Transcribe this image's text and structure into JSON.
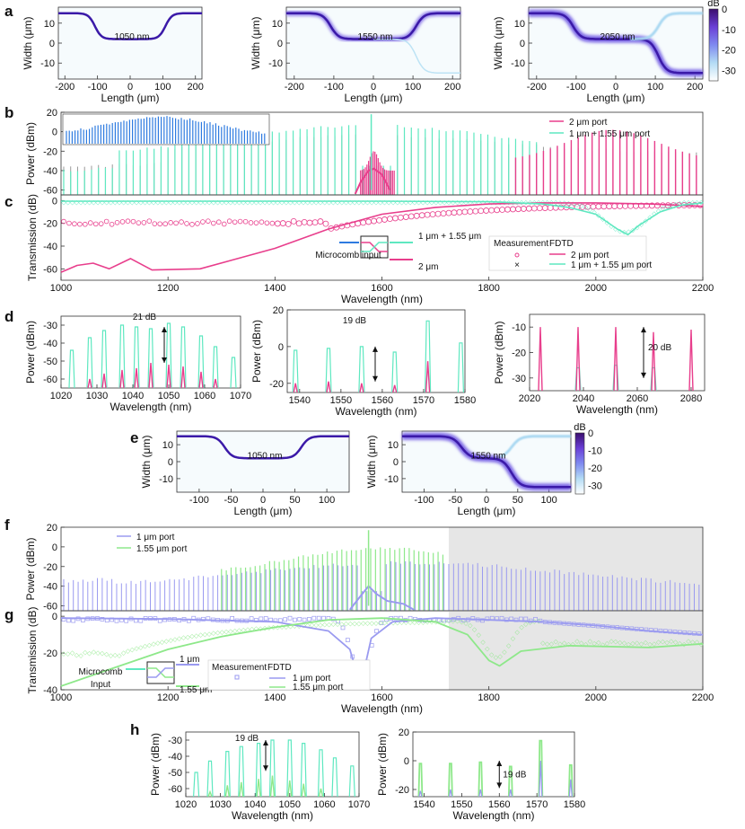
{
  "colors": {
    "pink": "#e83e8c",
    "teal": "#5ee8c0",
    "blue": "#2e7be0",
    "purple": "#5a3fd0",
    "lavender": "#9a9af0",
    "lightgreen": "#8ee88a",
    "grey": "#e6e6e6"
  },
  "panel_labels": [
    "a",
    "b",
    "c",
    "d",
    "e",
    "f",
    "g",
    "h"
  ],
  "units": {
    "dB": "dB"
  },
  "axis_labels": {
    "width": "Width (μm)",
    "length": "Length (μm)",
    "power": "Power (dBm)",
    "transmission": "Transmission (dB)",
    "wavelength": "Wavelength (nm)"
  },
  "chart_data": [
    {
      "id": "a1",
      "type": "heatmap",
      "title": "1050 nm",
      "xlabel": "Length (μm)",
      "ylabel": "Width (μm)",
      "xlim": [
        -220,
        220
      ],
      "ylim": [
        -18,
        18
      ],
      "xticks": [
        -200,
        -100,
        0,
        100,
        200
      ],
      "yticks": [
        10,
        0,
        -10
      ],
      "path": "upper"
    },
    {
      "id": "a2",
      "type": "heatmap",
      "title": "1550 nm",
      "xlabel": "Length (μm)",
      "ylabel": "Width (μm)",
      "xlim": [
        -220,
        220
      ],
      "ylim": [
        -18,
        18
      ],
      "xticks": [
        -200,
        -100,
        0,
        100,
        200
      ],
      "yticks": [
        10,
        0,
        -10
      ],
      "path": "upper+faint lower"
    },
    {
      "id": "a3",
      "type": "heatmap",
      "title": "2050 nm",
      "xlabel": "Length (μm)",
      "ylabel": "Width (μm)",
      "xlim": [
        -220,
        220
      ],
      "ylim": [
        -18,
        18
      ],
      "xticks": [
        -200,
        -100,
        0,
        100,
        200
      ],
      "yticks": [
        10,
        0,
        -10
      ],
      "path": "lower",
      "colorbar": {
        "label": "dB",
        "ticks": [
          0,
          -10,
          -20,
          -30
        ],
        "range": [
          -35,
          0
        ]
      }
    },
    {
      "id": "b",
      "type": "line",
      "xlabel": "",
      "ylabel": "Power (dBm)",
      "xlim": [
        1000,
        2200
      ],
      "ylim": [
        -65,
        20
      ],
      "yticks": [
        20,
        0,
        -20,
        -40,
        -60
      ],
      "legend": [
        "2 μm port",
        "1 μm + 1.55 μm port"
      ],
      "legend_position": "top-right",
      "inset": "Microcomb spectrum input"
    },
    {
      "id": "c",
      "type": "line",
      "xlabel": "Wavelength (nm)",
      "ylabel": "Transmission (dB)",
      "xlim": [
        1000,
        2200
      ],
      "ylim": [
        -70,
        5
      ],
      "xticks": [
        1000,
        1200,
        1400,
        1600,
        1800,
        2000,
        2200
      ],
      "yticks": [
        0,
        -20,
        -40,
        -60
      ],
      "series": [
        {
          "name": "2 μm port (FDTD)",
          "x": [
            1000,
            1030,
            1060,
            1090,
            1130,
            1170,
            1260,
            1400,
            1500,
            1600,
            1700,
            1800,
            1900,
            2000,
            2100,
            2200
          ],
          "values": [
            -63,
            -57,
            -55,
            -60,
            -51,
            -61,
            -60,
            -42,
            -25,
            -12,
            -6,
            -3,
            -2,
            -2,
            -3,
            -5
          ]
        },
        {
          "name": "1 μm + 1.55 μm port (FDTD)",
          "x": [
            1000,
            1200,
            1400,
            1600,
            1800,
            1900,
            1950,
            2000,
            2040,
            2060,
            2080,
            2120,
            2160,
            2200
          ],
          "values": [
            -0.5,
            -0.5,
            -0.5,
            -0.5,
            -1,
            -3,
            -6,
            -12,
            -25,
            -30,
            -22,
            -10,
            -4,
            -2
          ]
        }
      ],
      "legend_header": [
        "Measurement",
        "FDTD"
      ],
      "legend": [
        "2 μm port",
        "1 μm + 1.55 μm port"
      ],
      "schematic": {
        "input": "Microcomb input",
        "top": "1 μm + 1.55 μm",
        "bottom": "2 μm"
      }
    },
    {
      "id": "d1",
      "type": "line",
      "xlabel": "Wavelength (nm)",
      "ylabel": "Power (dBm)",
      "xlim": [
        1020,
        1070
      ],
      "ylim": [
        -65,
        -25
      ],
      "xticks": [
        1020,
        1030,
        1040,
        1050,
        1060,
        1070
      ],
      "yticks": [
        -30,
        -40,
        -50,
        -60
      ],
      "annotation": "21 dB"
    },
    {
      "id": "d2",
      "type": "line",
      "xlabel": "Wavelength (nm)",
      "ylabel": "Power (dBm)",
      "xlim": [
        1537,
        1580
      ],
      "ylim": [
        -25,
        20
      ],
      "xticks": [
        1540,
        1550,
        1560,
        1570,
        1580
      ],
      "yticks": [
        20,
        0,
        -20
      ],
      "annotation": "19 dB"
    },
    {
      "id": "d3",
      "type": "line",
      "xlabel": "Wavelength (nm)",
      "ylabel": "Power (dBm)",
      "xlim": [
        2020,
        2085
      ],
      "ylim": [
        -35,
        -5
      ],
      "xticks": [
        2020,
        2040,
        2060,
        2080
      ],
      "yticks": [
        -10,
        -20,
        -30
      ],
      "annotation": "20 dB"
    },
    {
      "id": "e1",
      "type": "heatmap",
      "title": "1050 nm",
      "xlabel": "Length (μm)",
      "ylabel": "Width (μm)",
      "xlim": [
        -135,
        135
      ],
      "ylim": [
        -18,
        18
      ],
      "xticks": [
        -100,
        -50,
        0,
        50,
        100
      ],
      "yticks": [
        10,
        0,
        -10
      ]
    },
    {
      "id": "e2",
      "type": "heatmap",
      "title": "1550 nm",
      "xlabel": "Length (μm)",
      "ylabel": "Width (μm)",
      "xlim": [
        -135,
        135
      ],
      "ylim": [
        -18,
        18
      ],
      "xticks": [
        -100,
        -50,
        0,
        50,
        100
      ],
      "yticks": [
        10,
        0,
        -10
      ],
      "colorbar": {
        "label": "dB",
        "ticks": [
          0,
          -10,
          -20,
          -30
        ],
        "range": [
          -35,
          0
        ]
      }
    },
    {
      "id": "f",
      "type": "line",
      "xlabel": "",
      "ylabel": "Power (dBm)",
      "xlim": [
        1000,
        2200
      ],
      "ylim": [
        -65,
        20
      ],
      "yticks": [
        20,
        0,
        -20,
        -40,
        -60
      ],
      "legend": [
        "1 μm port",
        "1.55 μm port"
      ],
      "legend_position": "top-left",
      "shaded_region": [
        1725,
        2200
      ]
    },
    {
      "id": "g",
      "type": "line",
      "xlabel": "Wavelength (nm)",
      "ylabel": "Transmission (dB)",
      "xlim": [
        1000,
        2200
      ],
      "ylim": [
        -40,
        3
      ],
      "xticks": [
        1000,
        1200,
        1400,
        1600,
        1800,
        2000,
        2200
      ],
      "yticks": [
        0,
        -20,
        -40
      ],
      "series": [
        {
          "name": "1 μm port (FDTD)",
          "x": [
            1000,
            1200,
            1400,
            1500,
            1540,
            1560,
            1580,
            1620,
            1700,
            1800,
            1900,
            2000,
            2100,
            2200
          ],
          "values": [
            -1,
            -1.5,
            -3,
            -8,
            -18,
            -38,
            -12,
            -3,
            -1,
            -2,
            -3,
            -5,
            -8,
            -10
          ]
        },
        {
          "name": "1.55 μm port (FDTD)",
          "x": [
            1000,
            1100,
            1200,
            1300,
            1400,
            1500,
            1600,
            1700,
            1760,
            1800,
            1820,
            1860,
            1950,
            2100,
            2200
          ],
          "values": [
            -38,
            -28,
            -18,
            -11,
            -6,
            -2,
            -1,
            -3,
            -10,
            -24,
            -27,
            -19,
            -16,
            -17,
            -15
          ]
        }
      ],
      "legend_header": [
        "Measurement",
        "FDTD"
      ],
      "legend": [
        "1 μm port",
        "1.55 μm port"
      ],
      "schematic": {
        "input": "Microcomb Input",
        "top": "1 μm",
        "bottom": "1.55 μm"
      }
    },
    {
      "id": "h1",
      "type": "line",
      "xlabel": "Wavelength (nm)",
      "ylabel": "Power (dBm)",
      "xlim": [
        1020,
        1070
      ],
      "ylim": [
        -65,
        -25
      ],
      "xticks": [
        1020,
        1030,
        1040,
        1050,
        1060,
        1070
      ],
      "yticks": [
        -30,
        -40,
        -50,
        -60
      ],
      "annotation": "19 dB"
    },
    {
      "id": "h2",
      "type": "line",
      "xlabel": "Wavelength (nm)",
      "ylabel": "Power (dBm)",
      "xlim": [
        1537,
        1580
      ],
      "ylim": [
        -25,
        20
      ],
      "xticks": [
        1540,
        1550,
        1560,
        1570,
        1580
      ],
      "yticks": [
        20,
        0,
        -20
      ],
      "annotation": "19 dB"
    }
  ]
}
